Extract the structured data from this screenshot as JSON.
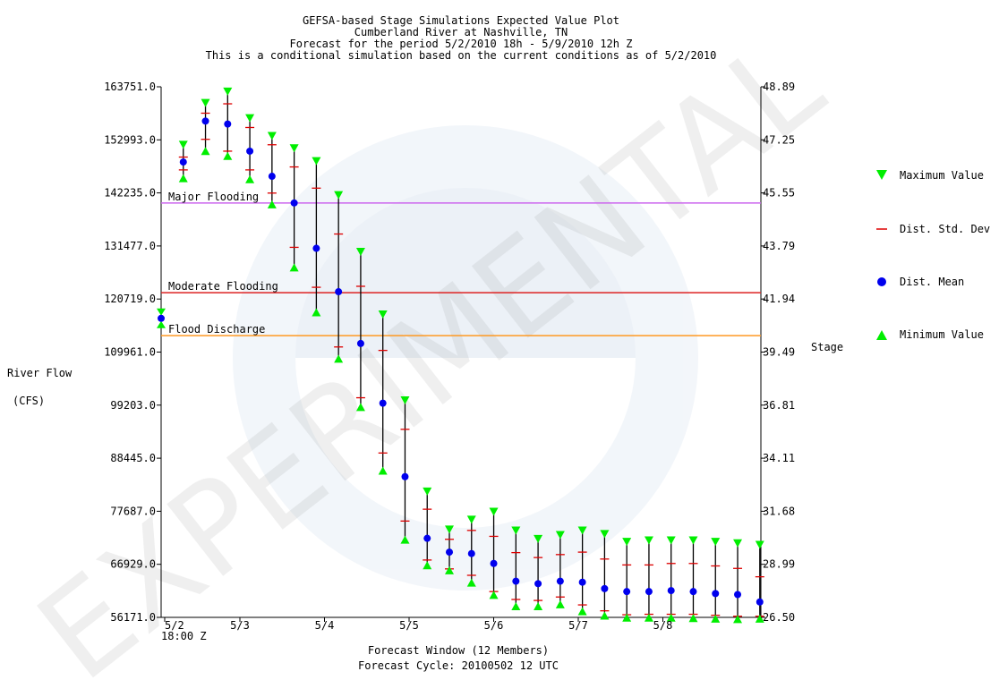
{
  "chart_data": {
    "type": "scatter",
    "title_lines": [
      "GEFSA-based Stage Simulations Expected Value Plot",
      "Cumberland River at Nashville, TN",
      "Forecast for the period 5/2/2010 18h - 5/9/2010 12h Z",
      "This is a conditional simulation based on the current conditions as of 5/2/2010"
    ],
    "ylabel_left": [
      "River Flow",
      "(CFS)"
    ],
    "ylabel_right": "Stage",
    "xlabel_lines": [
      "Forecast Window (12 Members)",
      "Forecast Cycle: 20100502 12 UTC"
    ],
    "y_left_ticks": [
      "163751.0",
      "152993.0",
      "142235.0",
      "131477.0",
      "120719.0",
      "109961.0",
      "99203.0",
      "88445.0",
      "77687.0",
      "66929.0",
      "56171.0"
    ],
    "y_right_ticks": [
      "48.89",
      "47.25",
      "45.55",
      "43.79",
      "41.94",
      "39.49",
      "36.81",
      "34.11",
      "31.68",
      "28.99",
      "26.50"
    ],
    "ylim": [
      56171.0,
      163751.0
    ],
    "x_ticks": [
      "5/2",
      "5/3",
      "5/4",
      "5/5",
      "5/6",
      "5/7",
      "5/8"
    ],
    "x_start_label": "18:00 Z",
    "xlim": [
      0,
      27.5
    ],
    "thresholds": [
      {
        "label": "Major Flooding",
        "value": 140200,
        "color": "#cc66ee"
      },
      {
        "label": "Moderate Flooding",
        "value": 122000,
        "color": "#dd2222"
      },
      {
        "label": "Flood Discharge",
        "value": 113300,
        "color": "#ff9922"
      }
    ],
    "observed": {
      "x": 0,
      "value": 116800
    },
    "legend": [
      {
        "label": "Maximum Value",
        "marker": "down-triangle",
        "color": "#00ee00"
      },
      {
        "label": "Dist. Std. Dev",
        "marker": "dash",
        "color": "#dd0000"
      },
      {
        "label": "Dist. Mean",
        "marker": "dot",
        "color": "#0000ee"
      },
      {
        "label": "Minimum Value",
        "marker": "up-triangle",
        "color": "#00ee00"
      }
    ],
    "colors": {
      "max": "#00ee00",
      "min": "#00ee00",
      "std": "#dd0000",
      "mean": "#0000ee",
      "whisker": "#000000"
    },
    "series": [
      {
        "x": 1,
        "max": 151700,
        "std_hi": 149500,
        "mean": 148500,
        "std_lo": 146900,
        "min": 145500
      },
      {
        "x": 2,
        "max": 160200,
        "std_hi": 158400,
        "mean": 156800,
        "std_lo": 153100,
        "min": 151000
      },
      {
        "x": 3,
        "max": 162500,
        "std_hi": 160300,
        "mean": 156200,
        "std_lo": 150700,
        "min": 150000
      },
      {
        "x": 4,
        "max": 157100,
        "std_hi": 155500,
        "mean": 150700,
        "std_lo": 146900,
        "min": 145300
      },
      {
        "x": 5,
        "max": 153500,
        "std_hi": 152000,
        "mean": 145600,
        "std_lo": 142200,
        "min": 140200
      },
      {
        "x": 6,
        "max": 151000,
        "std_hi": 147500,
        "mean": 140200,
        "std_lo": 131200,
        "min": 127400
      },
      {
        "x": 7,
        "max": 148400,
        "std_hi": 143200,
        "mean": 131000,
        "std_lo": 123100,
        "min": 118300
      },
      {
        "x": 8,
        "max": 141500,
        "std_hi": 133900,
        "mean": 122200,
        "std_lo": 111000,
        "min": 108900
      },
      {
        "x": 9,
        "max": 130000,
        "std_hi": 123300,
        "mean": 111700,
        "std_lo": 100700,
        "min": 99100
      },
      {
        "x": 10,
        "max": 117300,
        "std_hi": 110300,
        "mean": 99600,
        "std_lo": 89500,
        "min": 86200
      },
      {
        "x": 11,
        "max": 99900,
        "std_hi": 94300,
        "mean": 84700,
        "std_lo": 75700,
        "min": 72200
      },
      {
        "x": 12,
        "max": 81400,
        "std_hi": 78100,
        "mean": 72200,
        "std_lo": 67800,
        "min": 67000
      },
      {
        "x": 13,
        "max": 73700,
        "std_hi": 72000,
        "mean": 69400,
        "std_lo": 66000,
        "min": 66000
      },
      {
        "x": 14,
        "max": 75700,
        "std_hi": 73800,
        "mean": 69100,
        "std_lo": 64700,
        "min": 63500
      },
      {
        "x": 15,
        "max": 77300,
        "std_hi": 72600,
        "mean": 67100,
        "std_lo": 61400,
        "min": 61000
      },
      {
        "x": 16,
        "max": 73500,
        "std_hi": 69300,
        "mean": 63500,
        "std_lo": 59800,
        "min": 58700
      },
      {
        "x": 17,
        "max": 71800,
        "std_hi": 68300,
        "mean": 63000,
        "std_lo": 59600,
        "min": 58700
      },
      {
        "x": 18,
        "max": 72600,
        "std_hi": 68900,
        "mean": 63500,
        "std_lo": 60300,
        "min": 59100
      },
      {
        "x": 19,
        "max": 73500,
        "std_hi": 69400,
        "mean": 63300,
        "std_lo": 58700,
        "min": 57700
      },
      {
        "x": 20,
        "max": 72800,
        "std_hi": 68000,
        "mean": 62000,
        "std_lo": 57500,
        "min": 56800
      },
      {
        "x": 21,
        "max": 71200,
        "std_hi": 66800,
        "mean": 61400,
        "std_lo": 56700,
        "min": 56400
      },
      {
        "x": 22,
        "max": 71500,
        "std_hi": 66800,
        "mean": 61400,
        "std_lo": 56800,
        "min": 56400
      },
      {
        "x": 23,
        "max": 71500,
        "std_hi": 67100,
        "mean": 61600,
        "std_lo": 56800,
        "min": 56400
      },
      {
        "x": 24,
        "max": 71500,
        "std_hi": 67100,
        "mean": 61400,
        "std_lo": 56800,
        "min": 56300
      },
      {
        "x": 25,
        "max": 71200,
        "std_hi": 66600,
        "mean": 61000,
        "std_lo": 56600,
        "min": 56200
      },
      {
        "x": 26,
        "max": 70900,
        "std_hi": 66100,
        "mean": 60800,
        "std_lo": 56400,
        "min": 56100
      },
      {
        "x": 27,
        "max": 70600,
        "std_hi": 64400,
        "mean": 59300,
        "std_lo": 56400,
        "min": 56200
      }
    ]
  }
}
